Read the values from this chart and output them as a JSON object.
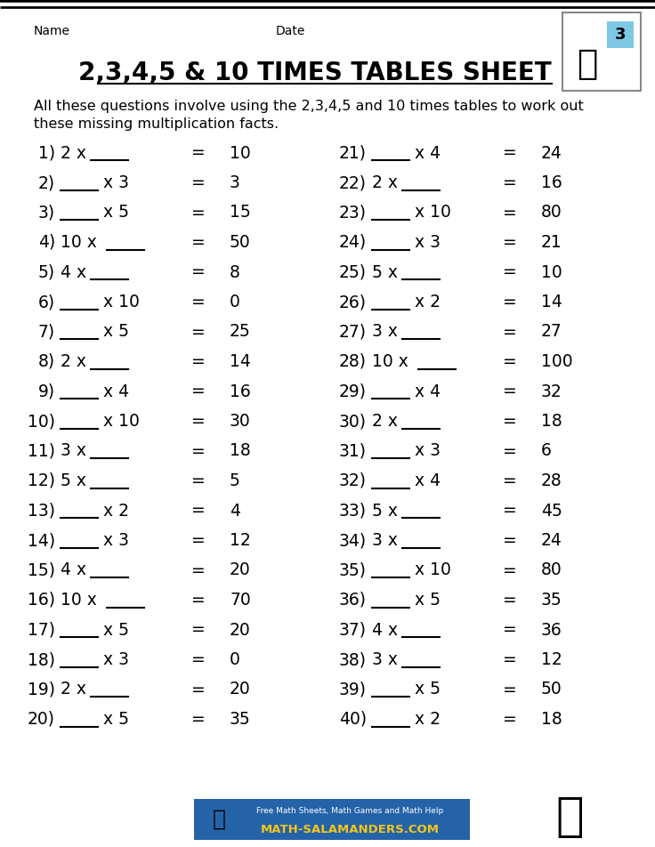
{
  "title": "2,3,4,5 & 10 TIMES TABLES SHEET 3",
  "name_label": "Name",
  "date_label": "Date",
  "description_line1": "All these questions involve using the 2,3,4,5 and 10 times tables to work out",
  "description_line2": "these missing multiplication facts.",
  "left_questions": [
    {
      "num": "1)",
      "blank_first": false,
      "known": "2",
      "eq": "10"
    },
    {
      "num": "2)",
      "blank_first": true,
      "known": "3",
      "eq": "3"
    },
    {
      "num": "3)",
      "blank_first": true,
      "known": "5",
      "eq": "15"
    },
    {
      "num": "4)",
      "blank_first": false,
      "known": "10",
      "eq": "50"
    },
    {
      "num": "5)",
      "blank_first": false,
      "known": "4",
      "eq": "8"
    },
    {
      "num": "6)",
      "blank_first": true,
      "known": "10",
      "eq": "0"
    },
    {
      "num": "7)",
      "blank_first": true,
      "known": "5",
      "eq": "25"
    },
    {
      "num": "8)",
      "blank_first": false,
      "known": "2",
      "eq": "14"
    },
    {
      "num": "9)",
      "blank_first": true,
      "known": "4",
      "eq": "16"
    },
    {
      "num": "10)",
      "blank_first": true,
      "known": "10",
      "eq": "30"
    },
    {
      "num": "11)",
      "blank_first": false,
      "known": "3",
      "eq": "18"
    },
    {
      "num": "12)",
      "blank_first": false,
      "known": "5",
      "eq": "5"
    },
    {
      "num": "13)",
      "blank_first": true,
      "known": "2",
      "eq": "4"
    },
    {
      "num": "14)",
      "blank_first": true,
      "known": "3",
      "eq": "12"
    },
    {
      "num": "15)",
      "blank_first": false,
      "known": "4",
      "eq": "20"
    },
    {
      "num": "16)",
      "blank_first": false,
      "known": "10",
      "eq": "70"
    },
    {
      "num": "17)",
      "blank_first": true,
      "known": "5",
      "eq": "20"
    },
    {
      "num": "18)",
      "blank_first": true,
      "known": "3",
      "eq": "0"
    },
    {
      "num": "19)",
      "blank_first": false,
      "known": "2",
      "eq": "20"
    },
    {
      "num": "20)",
      "blank_first": true,
      "known": "5",
      "eq": "35"
    }
  ],
  "right_questions": [
    {
      "num": "21)",
      "blank_first": true,
      "known": "4",
      "eq": "24"
    },
    {
      "num": "22)",
      "blank_first": false,
      "known": "2",
      "eq": "16"
    },
    {
      "num": "23)",
      "blank_first": true,
      "known": "10",
      "eq": "80"
    },
    {
      "num": "24)",
      "blank_first": true,
      "known": "3",
      "eq": "21"
    },
    {
      "num": "25)",
      "blank_first": false,
      "known": "5",
      "eq": "10"
    },
    {
      "num": "26)",
      "blank_first": true,
      "known": "2",
      "eq": "14"
    },
    {
      "num": "27)",
      "blank_first": false,
      "known": "3",
      "eq": "27"
    },
    {
      "num": "28)",
      "blank_first": false,
      "known": "10",
      "eq": "100"
    },
    {
      "num": "29)",
      "blank_first": true,
      "known": "4",
      "eq": "32"
    },
    {
      "num": "30)",
      "blank_first": false,
      "known": "2",
      "eq": "18"
    },
    {
      "num": "31)",
      "blank_first": true,
      "known": "3",
      "eq": "6"
    },
    {
      "num": "32)",
      "blank_first": true,
      "known": "4",
      "eq": "28"
    },
    {
      "num": "33)",
      "blank_first": false,
      "known": "5",
      "eq": "45"
    },
    {
      "num": "34)",
      "blank_first": false,
      "known": "3",
      "eq": "24"
    },
    {
      "num": "35)",
      "blank_first": true,
      "known": "10",
      "eq": "80"
    },
    {
      "num": "36)",
      "blank_first": true,
      "known": "5",
      "eq": "35"
    },
    {
      "num": "37)",
      "blank_first": false,
      "known": "4",
      "eq": "36"
    },
    {
      "num": "38)",
      "blank_first": false,
      "known": "3",
      "eq": "12"
    },
    {
      "num": "39)",
      "blank_first": true,
      "known": "5",
      "eq": "50"
    },
    {
      "num": "40)",
      "blank_first": true,
      "known": "2",
      "eq": "18"
    }
  ],
  "bg_color": "#ffffff",
  "text_color": "#000000",
  "footer_bg": "#2563a8",
  "footer_text_top": "Free Math Sheets, Math Games and Math Help",
  "footer_text_bottom": "MATH-SALAMANDERS.COM",
  "footer_text_color": "#ffffff",
  "footer_yellow": "#f5c518"
}
